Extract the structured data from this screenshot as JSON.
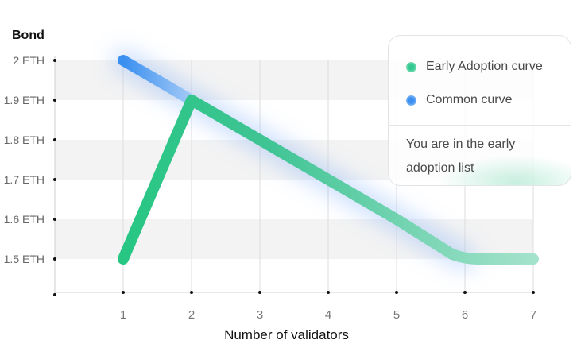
{
  "chart_data": {
    "type": "line",
    "ylabel": "Bond",
    "xlabel": "Number of validators",
    "x": [
      1,
      2,
      3,
      4,
      5,
      6,
      7
    ],
    "y_ticks": [
      "1.5 ETH",
      "1.6 ETH",
      "1.7 ETH",
      "1.8 ETH",
      "1.9 ETH",
      "2 ETH"
    ],
    "x_ticks": [
      "1",
      "2",
      "3",
      "4",
      "5",
      "6",
      "7"
    ],
    "xlim": [
      0,
      7
    ],
    "ylim": [
      1.42,
      2.0
    ],
    "series": [
      {
        "name": "Early Adoption curve",
        "color": "#2ec98a",
        "x": [
          1,
          2,
          3,
          4,
          5,
          6,
          7
        ],
        "values": [
          1.5,
          1.9,
          1.8,
          1.7,
          1.6,
          1.5,
          1.5
        ]
      },
      {
        "name": "Common curve",
        "color": "#3a8ff0",
        "x": [
          1,
          2
        ],
        "values": [
          2.0,
          1.9
        ]
      }
    ],
    "legend_position": "top-right",
    "grid": "alternating horizontal bands"
  },
  "legend": {
    "items": [
      {
        "label": "Early Adoption curve",
        "color": "#34c98f"
      },
      {
        "label": "Common curve",
        "color": "#3a8ff0"
      }
    ],
    "note": "You are in the early adoption list"
  }
}
